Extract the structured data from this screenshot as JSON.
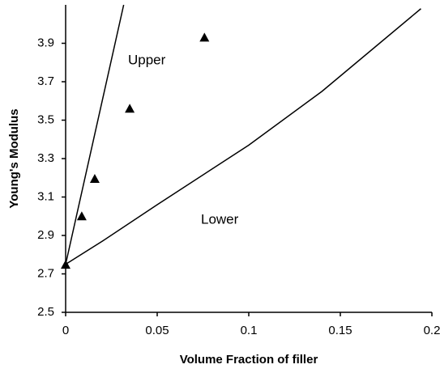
{
  "chart_data": {
    "type": "scatter",
    "x_label": "Volume Fraction of filler",
    "y_label": "Young's Modulus",
    "annotations": [
      "Upper",
      "Lower"
    ],
    "xlim": [
      0,
      0.2
    ],
    "xticks": [
      0,
      0.05,
      0.1,
      0.15,
      0.2
    ],
    "ylim": [
      2.5,
      4.1
    ],
    "yticks": [
      2.5,
      2.7,
      2.9,
      3.1,
      3.3,
      3.5,
      3.7,
      3.9
    ],
    "series": [
      {
        "style": "line",
        "color": "#000000",
        "x": [
          0,
          0.0317
        ],
        "values": [
          2.75,
          4.1
        ]
      },
      {
        "style": "line",
        "color": "#000000",
        "x": [
          0,
          0.02,
          0.05,
          0.1,
          0.14,
          0.194
        ],
        "values": [
          2.75,
          2.87,
          3.06,
          3.37,
          3.65,
          4.08
        ]
      },
      {
        "style": "marker",
        "marker": "triangle",
        "color": "#000000",
        "x": [
          0,
          0.0088,
          0.0159,
          0.035,
          0.0758
        ],
        "values": [
          2.748,
          3.0,
          3.195,
          3.56,
          3.93
        ]
      }
    ]
  }
}
